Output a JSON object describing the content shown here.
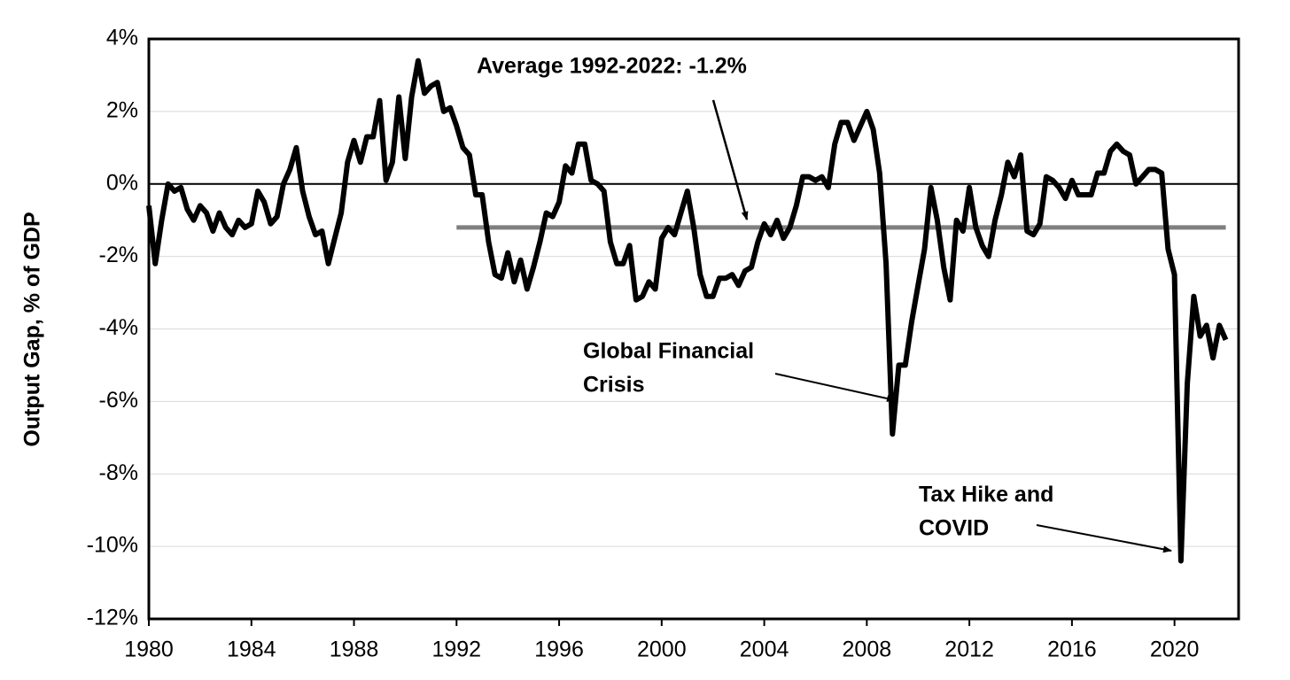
{
  "chart_data": {
    "type": "line",
    "y_label": "Output Gap, % of GDP",
    "annotations": {
      "average": "Average 1992-2022: -1.2%",
      "gfc": [
        "Global Financial",
        "Crisis"
      ],
      "covid": [
        "Tax Hike and",
        "COVID"
      ]
    },
    "reference_line": {
      "value": -1.2,
      "x": [
        1992,
        2022
      ],
      "color": "#7f7f7f"
    },
    "xlim": [
      1980,
      2022.5
    ],
    "xticks": [
      1980,
      1984,
      1988,
      1992,
      1996,
      2000,
      2004,
      2008,
      2012,
      2016,
      2020
    ],
    "ylim": [
      -12,
      4
    ],
    "yticks": [
      {
        "value": 4,
        "label": "4%"
      },
      {
        "value": 2,
        "label": "2%"
      },
      {
        "value": 0,
        "label": "0%"
      },
      {
        "value": -2,
        "label": "-2%"
      },
      {
        "value": -4,
        "label": "-4%"
      },
      {
        "value": -6,
        "label": "-6%"
      },
      {
        "value": -8,
        "label": "-8%"
      },
      {
        "value": -10,
        "label": "-10%"
      },
      {
        "value": -12,
        "label": "-12%"
      }
    ],
    "grid": true,
    "series": [
      {
        "name": "Output Gap",
        "color": "#000000",
        "x": [
          1980,
          1980.25,
          1980.5,
          1980.75,
          1981,
          1981.25,
          1981.5,
          1981.75,
          1982,
          1982.25,
          1982.5,
          1982.75,
          1983,
          1983.25,
          1983.5,
          1983.75,
          1984,
          1984.25,
          1984.5,
          1984.75,
          1985,
          1985.25,
          1985.5,
          1985.75,
          1986,
          1986.25,
          1986.5,
          1986.75,
          1987,
          1987.25,
          1987.5,
          1987.75,
          1988,
          1988.25,
          1988.5,
          1988.75,
          1989,
          1989.25,
          1989.5,
          1989.75,
          1990,
          1990.25,
          1990.5,
          1990.75,
          1991,
          1991.25,
          1991.5,
          1991.75,
          1992,
          1992.25,
          1992.5,
          1992.75,
          1993,
          1993.25,
          1993.5,
          1993.75,
          1994,
          1994.25,
          1994.5,
          1994.75,
          1995,
          1995.25,
          1995.5,
          1995.75,
          1996,
          1996.25,
          1996.5,
          1996.75,
          1997,
          1997.25,
          1997.5,
          1997.75,
          1998,
          1998.25,
          1998.5,
          1998.75,
          1999,
          1999.25,
          1999.5,
          1999.75,
          2000,
          2000.25,
          2000.5,
          2000.75,
          2001,
          2001.25,
          2001.5,
          2001.75,
          2002,
          2002.25,
          2002.5,
          2002.75,
          2003,
          2003.25,
          2003.5,
          2003.75,
          2004,
          2004.25,
          2004.5,
          2004.75,
          2005,
          2005.25,
          2005.5,
          2005.75,
          2006,
          2006.25,
          2006.5,
          2006.75,
          2007,
          2007.25,
          2007.5,
          2007.75,
          2008,
          2008.25,
          2008.5,
          2008.75,
          2009,
          2009.25,
          2009.5,
          2009.75,
          2010,
          2010.25,
          2010.5,
          2010.75,
          2011,
          2011.25,
          2011.5,
          2011.75,
          2012,
          2012.25,
          2012.5,
          2012.75,
          2013,
          2013.25,
          2013.5,
          2013.75,
          2014,
          2014.25,
          2014.5,
          2014.75,
          2015,
          2015.25,
          2015.5,
          2015.75,
          2016,
          2016.25,
          2016.5,
          2016.75,
          2017,
          2017.25,
          2017.5,
          2017.75,
          2018,
          2018.25,
          2018.5,
          2018.75,
          2019,
          2019.25,
          2019.5,
          2019.75,
          2020,
          2020.25,
          2020.5,
          2020.75,
          2021,
          2021.25,
          2021.5,
          2021.75,
          2022
        ],
        "values": [
          -0.6,
          -2.2,
          -1.0,
          0.0,
          -0.2,
          -0.1,
          -0.7,
          -1.0,
          -0.6,
          -0.8,
          -1.3,
          -0.8,
          -1.2,
          -1.4,
          -1.0,
          -1.2,
          -1.1,
          -0.2,
          -0.5,
          -1.1,
          -0.9,
          0.0,
          0.4,
          1.0,
          -0.2,
          -0.9,
          -1.4,
          -1.3,
          -2.2,
          -1.5,
          -0.8,
          0.6,
          1.2,
          0.6,
          1.3,
          1.3,
          2.3,
          0.1,
          0.6,
          2.4,
          0.7,
          2.4,
          3.4,
          2.5,
          2.7,
          2.8,
          2.0,
          2.1,
          1.6,
          1.0,
          0.8,
          -0.3,
          -0.3,
          -1.6,
          -2.5,
          -2.6,
          -1.9,
          -2.7,
          -2.1,
          -2.9,
          -2.3,
          -1.6,
          -0.8,
          -0.9,
          -0.5,
          0.5,
          0.3,
          1.1,
          1.1,
          0.1,
          0.0,
          -0.2,
          -1.6,
          -2.2,
          -2.2,
          -1.7,
          -3.2,
          -3.1,
          -2.7,
          -2.9,
          -1.5,
          -1.2,
          -1.4,
          -0.8,
          -0.2,
          -1.2,
          -2.5,
          -3.1,
          -3.1,
          -2.6,
          -2.6,
          -2.5,
          -2.8,
          -2.4,
          -2.3,
          -1.6,
          -1.1,
          -1.4,
          -1.0,
          -1.5,
          -1.2,
          -0.6,
          0.2,
          0.2,
          0.1,
          0.2,
          -0.1,
          1.1,
          1.7,
          1.7,
          1.2,
          1.6,
          2.0,
          1.5,
          0.3,
          -2.2,
          -6.9,
          -5.0,
          -5.0,
          -3.8,
          -2.8,
          -1.8,
          -0.1,
          -1.0,
          -2.3,
          -3.2,
          -1.0,
          -1.3,
          -0.1,
          -1.2,
          -1.7,
          -2.0,
          -1.0,
          -0.3,
          0.6,
          0.2,
          0.8,
          -1.3,
          -1.4,
          -1.1,
          0.2,
          0.1,
          -0.1,
          -0.4,
          0.1,
          -0.3,
          -0.3,
          -0.3,
          0.3,
          0.3,
          0.9,
          1.1,
          0.9,
          0.8,
          0.0,
          0.2,
          0.4,
          0.4,
          0.3,
          -1.8,
          -2.5,
          -10.4,
          -5.5,
          -3.1,
          -4.2,
          -3.9,
          -4.8,
          -3.9,
          -4.3
        ]
      }
    ]
  }
}
